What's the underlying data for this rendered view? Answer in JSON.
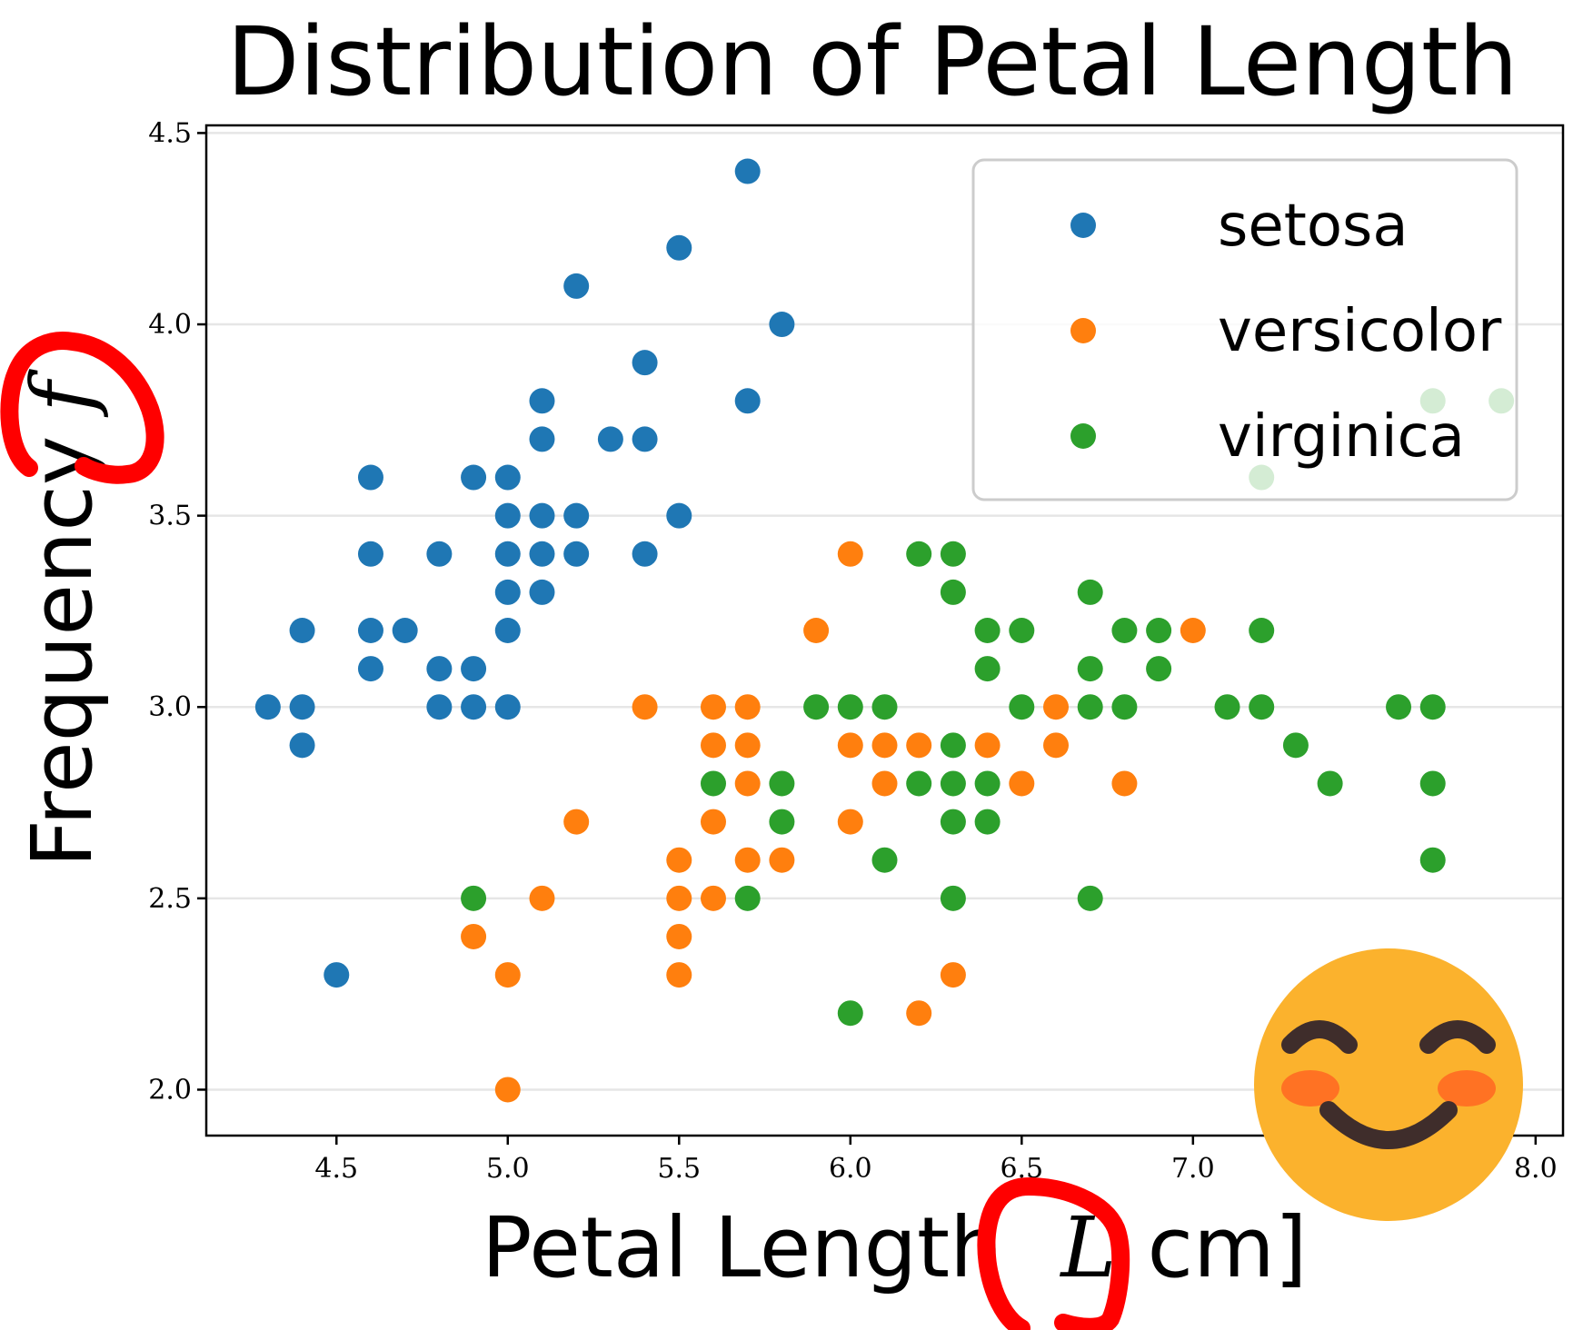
{
  "chart_data": {
    "type": "scatter",
    "title": "Distribution of Petal Length",
    "xlabel": {
      "text": "Petal Length",
      "symbol": "L",
      "unit": "cm]"
    },
    "ylabel": {
      "text": "Frequency",
      "symbol": "f"
    },
    "xlim": [
      4.12,
      8.08
    ],
    "ylim": [
      1.88,
      4.52
    ],
    "xticks": [
      4.5,
      5.0,
      5.5,
      6.0,
      6.5,
      7.0,
      7.5,
      8.0
    ],
    "xtick_labels": [
      "4.5",
      "5.0",
      "5.5",
      "6.0",
      "6.5",
      "7.0",
      "7.5",
      "8.0"
    ],
    "yticks": [
      2.0,
      2.5,
      3.0,
      3.5,
      4.0,
      4.5
    ],
    "ytick_labels": [
      "2.0",
      "2.5",
      "3.0",
      "3.5",
      "4.0",
      "4.5"
    ],
    "grid": "horizontal",
    "legend_position": "top-right",
    "series": [
      {
        "name": "setosa",
        "color": "#1f77b4",
        "points": [
          [
            4.3,
            3.0
          ],
          [
            4.4,
            3.0
          ],
          [
            4.4,
            3.2
          ],
          [
            4.4,
            2.9
          ],
          [
            4.5,
            2.3
          ],
          [
            4.6,
            3.6
          ],
          [
            4.6,
            3.4
          ],
          [
            4.6,
            3.2
          ],
          [
            4.6,
            3.1
          ],
          [
            4.7,
            3.2
          ],
          [
            4.8,
            3.4
          ],
          [
            4.8,
            3.1
          ],
          [
            4.8,
            3.0
          ],
          [
            4.9,
            3.6
          ],
          [
            4.9,
            3.1
          ],
          [
            4.9,
            3.0
          ],
          [
            5.0,
            3.6
          ],
          [
            5.0,
            3.5
          ],
          [
            5.0,
            3.4
          ],
          [
            5.0,
            3.3
          ],
          [
            5.0,
            3.2
          ],
          [
            5.0,
            3.0
          ],
          [
            5.1,
            3.8
          ],
          [
            5.1,
            3.7
          ],
          [
            5.1,
            3.5
          ],
          [
            5.1,
            3.4
          ],
          [
            5.1,
            3.3
          ],
          [
            5.2,
            4.1
          ],
          [
            5.2,
            3.5
          ],
          [
            5.2,
            3.4
          ],
          [
            5.3,
            3.7
          ],
          [
            5.4,
            3.9
          ],
          [
            5.4,
            3.7
          ],
          [
            5.4,
            3.4
          ],
          [
            5.5,
            4.2
          ],
          [
            5.5,
            3.5
          ],
          [
            5.7,
            4.4
          ],
          [
            5.7,
            3.8
          ],
          [
            5.8,
            4.0
          ]
        ]
      },
      {
        "name": "versicolor",
        "color": "#ff7f0e",
        "points": [
          [
            4.9,
            2.4
          ],
          [
            5.0,
            2.3
          ],
          [
            5.0,
            2.0
          ],
          [
            5.1,
            2.5
          ],
          [
            5.2,
            2.7
          ],
          [
            5.4,
            3.0
          ],
          [
            5.5,
            2.6
          ],
          [
            5.5,
            2.5
          ],
          [
            5.5,
            2.4
          ],
          [
            5.5,
            2.3
          ],
          [
            5.6,
            3.0
          ],
          [
            5.6,
            2.9
          ],
          [
            5.6,
            2.7
          ],
          [
            5.6,
            2.5
          ],
          [
            5.7,
            3.0
          ],
          [
            5.7,
            2.9
          ],
          [
            5.7,
            2.8
          ],
          [
            5.7,
            2.6
          ],
          [
            5.8,
            2.6
          ],
          [
            5.9,
            3.2
          ],
          [
            6.0,
            3.4
          ],
          [
            6.0,
            2.9
          ],
          [
            6.0,
            2.7
          ],
          [
            6.1,
            2.9
          ],
          [
            6.1,
            2.8
          ],
          [
            6.2,
            2.9
          ],
          [
            6.2,
            2.2
          ],
          [
            6.3,
            2.3
          ],
          [
            6.4,
            2.9
          ],
          [
            6.5,
            2.8
          ],
          [
            6.6,
            3.0
          ],
          [
            6.6,
            2.9
          ],
          [
            6.8,
            2.8
          ],
          [
            7.0,
            3.2
          ]
        ]
      },
      {
        "name": "virginica",
        "color": "#2ca02c",
        "points": [
          [
            4.9,
            2.5
          ],
          [
            5.6,
            2.8
          ],
          [
            5.7,
            2.5
          ],
          [
            5.8,
            2.8
          ],
          [
            5.8,
            2.7
          ],
          [
            5.9,
            3.0
          ],
          [
            6.0,
            3.0
          ],
          [
            6.0,
            2.2
          ],
          [
            6.1,
            3.0
          ],
          [
            6.1,
            2.6
          ],
          [
            6.2,
            3.4
          ],
          [
            6.2,
            2.8
          ],
          [
            6.3,
            3.4
          ],
          [
            6.3,
            3.3
          ],
          [
            6.3,
            2.9
          ],
          [
            6.3,
            2.8
          ],
          [
            6.3,
            2.7
          ],
          [
            6.3,
            2.5
          ],
          [
            6.4,
            3.2
          ],
          [
            6.4,
            3.1
          ],
          [
            6.4,
            2.8
          ],
          [
            6.4,
            2.7
          ],
          [
            6.5,
            3.2
          ],
          [
            6.5,
            3.0
          ],
          [
            6.7,
            3.3
          ],
          [
            6.7,
            3.1
          ],
          [
            6.7,
            3.0
          ],
          [
            6.7,
            2.5
          ],
          [
            6.8,
            3.2
          ],
          [
            6.8,
            3.0
          ],
          [
            6.9,
            3.2
          ],
          [
            6.9,
            3.1
          ],
          [
            7.1,
            3.0
          ],
          [
            7.2,
            3.6
          ],
          [
            7.2,
            3.2
          ],
          [
            7.2,
            3.0
          ],
          [
            7.3,
            2.9
          ],
          [
            7.4,
            2.8
          ],
          [
            7.6,
            3.0
          ],
          [
            7.7,
            3.8
          ],
          [
            7.7,
            3.0
          ],
          [
            7.7,
            2.8
          ],
          [
            7.7,
            2.6
          ],
          [
            7.9,
            3.8
          ]
        ]
      }
    ]
  },
  "overlays": {
    "emoji_icon": "smiling-face-with-smiling-eyes-icon",
    "annotation_color": "#ff0000"
  }
}
